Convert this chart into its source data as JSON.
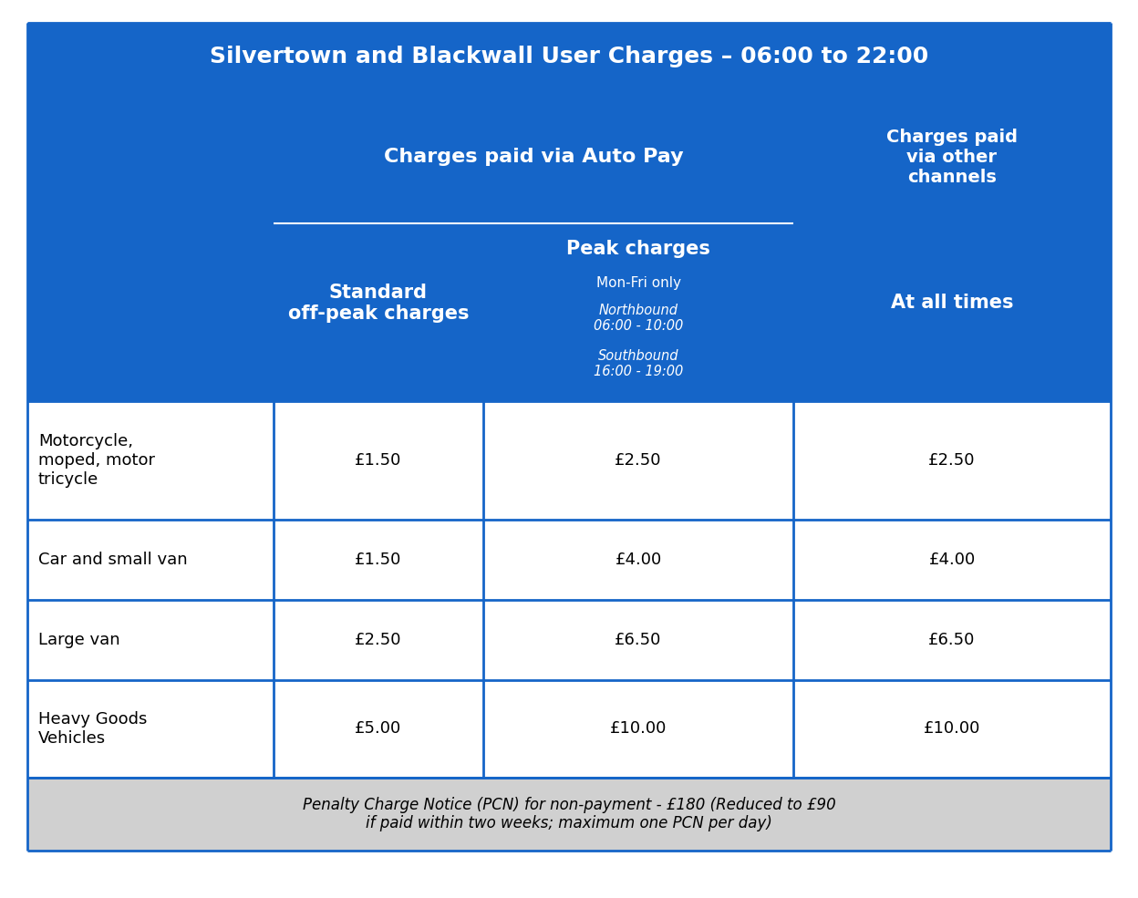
{
  "title": "Silvertown and Blackwall User Charges – 06:00 to 22:00",
  "header_bg": "#1565C8",
  "header_text_color": "#FFFFFF",
  "body_bg": "#FFFFFF",
  "footer_bg": "#D0D0D0",
  "border_color": "#1565C8",
  "col2_header": "Charges paid via Auto Pay",
  "col3_header": "Charges paid\nvia other\nchannels",
  "col2a_header": "Standard\noff-peak charges",
  "col2b_header_bold": "Peak charges",
  "col2b_sub1": "Mon-Fri only",
  "col2b_sub2": "Northbound\n06:00 - 10:00",
  "col2b_sub3": "Southbound\n16:00 - 19:00",
  "col3a_header": "At all times",
  "rows": [
    {
      "vehicle": "Motorcycle,\nmoped, motor\ntricycle",
      "standard": "£1.50",
      "peak": "£2.50",
      "other": "£2.50"
    },
    {
      "vehicle": "Car and small van",
      "standard": "£1.50",
      "peak": "£4.00",
      "other": "£4.00"
    },
    {
      "vehicle": "Large van",
      "standard": "£2.50",
      "peak": "£6.50",
      "other": "£6.50"
    },
    {
      "vehicle": "Heavy Goods\nVehicles",
      "standard": "£5.00",
      "peak": "£10.00",
      "other": "£10.00"
    }
  ],
  "footer": "Penalty Charge Notice (PCN) for non-payment - £180 (Reduced to £90\nif paid within two weeks; maximum one PCN per day)",
  "fig_w": 12.48,
  "fig_h": 9.85,
  "dpi": 100
}
